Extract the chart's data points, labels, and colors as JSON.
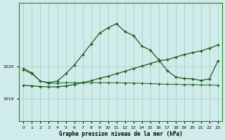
{
  "xlabel": "Graphe pression niveau de la mer (hPa)",
  "background_color": "#d0ecea",
  "grid_color": "#aad4cc",
  "line_color": "#1a5c1a",
  "ytick_labels": [
    "1019",
    "1020"
  ],
  "ytick_vals": [
    1019,
    1020
  ],
  "ylim": [
    1018.3,
    1022.0
  ],
  "xlim": [
    -0.5,
    23.5
  ],
  "hours": [
    0,
    1,
    2,
    3,
    4,
    5,
    6,
    7,
    8,
    9,
    10,
    11,
    12,
    13,
    14,
    15,
    16,
    17,
    18,
    19,
    20,
    21,
    22,
    23
  ],
  "peaked_y": [
    1019.95,
    1019.8,
    1019.55,
    1019.5,
    1019.55,
    1019.78,
    1020.05,
    1020.38,
    1020.72,
    1021.05,
    1021.22,
    1021.35,
    1021.1,
    1020.98,
    1020.65,
    1020.52,
    1020.22,
    1019.88,
    1019.68,
    1019.63,
    1019.62,
    1019.57,
    1019.62,
    1020.18
  ],
  "diagonal_y": [
    1019.42,
    1019.4,
    1019.38,
    1019.37,
    1019.37,
    1019.4,
    1019.44,
    1019.5,
    1019.56,
    1019.64,
    1019.7,
    1019.78,
    1019.86,
    1019.94,
    1020.02,
    1020.1,
    1020.18,
    1020.22,
    1020.3,
    1020.38,
    1020.44,
    1020.5,
    1020.58,
    1020.68
  ],
  "declining_y": [
    1019.9,
    1019.78,
    1019.55,
    1019.48,
    1019.48,
    1019.5,
    1019.5,
    1019.5,
    1019.5,
    1019.5,
    1019.5,
    1019.5,
    1019.49,
    1019.49,
    1019.48,
    1019.47,
    1019.46,
    1019.45,
    1019.45,
    1019.44,
    1019.44,
    1019.43,
    1019.43,
    1019.42
  ]
}
